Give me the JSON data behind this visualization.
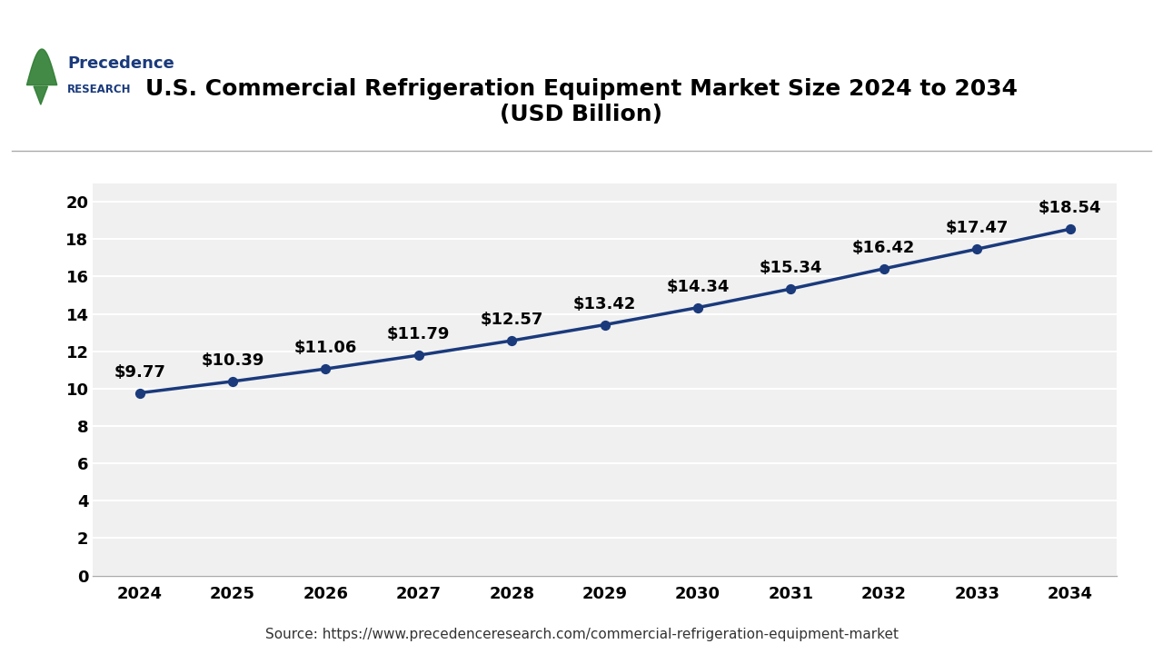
{
  "title": "U.S. Commercial Refrigeration Equipment Market Size 2024 to 2034\n(USD Billion)",
  "years": [
    2024,
    2025,
    2026,
    2027,
    2028,
    2029,
    2030,
    2031,
    2032,
    2033,
    2034
  ],
  "values": [
    9.77,
    10.39,
    11.06,
    11.79,
    12.57,
    13.42,
    14.34,
    15.34,
    16.42,
    17.47,
    18.54
  ],
  "labels": [
    "$9.77",
    "$10.39",
    "$11.06",
    "$11.79",
    "$12.57",
    "$13.42",
    "$14.34",
    "$15.34",
    "$16.42",
    "$17.47",
    "$18.54"
  ],
  "line_color": "#1a3a7c",
  "marker_color": "#1a3a7c",
  "background_color": "#ffffff",
  "plot_bg_color": "#f0f0f0",
  "grid_color": "#ffffff",
  "ylim": [
    0,
    21
  ],
  "yticks": [
    0,
    2,
    4,
    6,
    8,
    10,
    12,
    14,
    16,
    18,
    20
  ],
  "source_text": "Source: https://www.precedenceresearch.com/commercial-refrigeration-equipment-market",
  "title_fontsize": 18,
  "tick_fontsize": 13,
  "label_fontsize": 13,
  "source_fontsize": 11,
  "logo_text1": "Precedence",
  "logo_text2": "RESEARCH",
  "logo_color": "#1a3a7c",
  "leaf_color": "#2e7d32"
}
